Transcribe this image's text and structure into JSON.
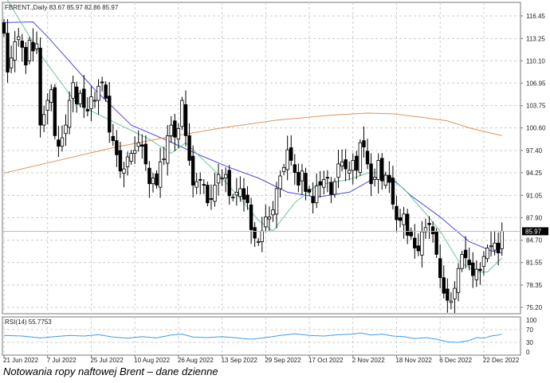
{
  "chart_data": {
    "type": "candlestick",
    "title": "FBRENT.,Daily",
    "ohlc_header": "83.67 85.97 82.86 85.97",
    "caption": "Notowania ropy naftowej Brent – dane dzienne",
    "current_price": "85.97",
    "ylim": [
      74.0,
      117.9
    ],
    "y_ticks": [
      "116.45",
      "113.25",
      "110.10",
      "106.95",
      "103.75",
      "100.60",
      "97.40",
      "94.25",
      "91.05",
      "87.90",
      "84.70",
      "81.55",
      "78.35",
      "75.20"
    ],
    "x_ticks": [
      {
        "label": "21 Jun 2022",
        "index": 0
      },
      {
        "label": "7 Jul 2022",
        "index": 12
      },
      {
        "label": "25 Jul 2022",
        "index": 24
      },
      {
        "label": "10 Aug 2022",
        "index": 36
      },
      {
        "label": "26 Aug 2022",
        "index": 48
      },
      {
        "label": "13 Sep 2022",
        "index": 60
      },
      {
        "label": "29 Sep 2022",
        "index": 72
      },
      {
        "label": "17 Oct 2022",
        "index": 84
      },
      {
        "label": "2 Nov 2022",
        "index": 96
      },
      {
        "label": "18 Nov 2022",
        "index": 108
      },
      {
        "label": "6 Dec 2022",
        "index": 120
      },
      {
        "label": "22 Dec 2022",
        "index": 132
      }
    ],
    "closes": [
      114.0,
      108.5,
      110.5,
      112.8,
      113.5,
      112.0,
      109.5,
      113.0,
      111.5,
      112.5,
      101.0,
      102.5,
      104.5,
      106.0,
      99.5,
      98.0,
      99.2,
      101.0,
      104.5,
      107.0,
      104.0,
      105.5,
      103.5,
      103.0,
      105.0,
      104.5,
      106.5,
      107.0,
      104.8,
      100.0,
      98.8,
      96.8,
      94.5,
      94.8,
      96.5,
      97.0,
      97.4,
      98.5,
      98.0,
      95.5,
      92.7,
      93.5,
      92.5,
      95.8,
      96.2,
      99.5,
      101.0,
      99.3,
      100.5,
      104.5,
      99.5,
      96.0,
      92.5,
      93.0,
      93.2,
      92.5,
      90.0,
      90.5,
      92.5,
      94.0,
      93.5,
      94.0,
      91.0,
      90.8,
      91.5,
      92.0,
      90.5,
      90.0,
      86.2,
      85.0,
      84.5,
      86.0,
      88.0,
      88.0,
      89.0,
      92.0,
      93.8,
      95.0,
      97.5,
      96.0,
      94.3,
      92.5,
      94.5,
      91.6,
      91.5,
      90.0,
      92.4,
      92.5,
      93.3,
      93.5,
      91.2,
      93.0,
      95.5,
      95.8,
      94.8,
      94.6,
      96.0,
      94.6,
      98.5,
      97.9,
      95.5,
      92.7,
      93.6,
      96.0,
      93.1,
      93.9,
      92.9,
      89.8,
      87.6,
      87.5,
      88.4,
      85.4,
      85.3,
      83.6,
      83.2,
      85.9,
      86.5,
      86.9,
      85.6,
      82.7,
      79.4,
      77.2,
      76.2,
      76.1,
      77.9,
      80.7,
      82.7,
      82.2,
      81.2,
      79.7,
      80.6,
      80.4,
      82.4,
      83.6,
      83.9,
      84.3,
      82.9,
      85.97
    ],
    "series": [
      {
        "name": "MA slow (blue)",
        "color": "#4b4bdc",
        "points": [
          [
            0,
            115.5
          ],
          [
            8,
            115.6
          ],
          [
            12,
            113.5
          ],
          [
            25,
            106
          ],
          [
            35,
            101
          ],
          [
            45,
            98.8
          ],
          [
            55,
            96.5
          ],
          [
            62,
            95
          ],
          [
            70,
            93.5
          ],
          [
            78,
            91.5
          ],
          [
            86,
            90.8
          ],
          [
            95,
            91.5
          ],
          [
            102,
            93.5
          ],
          [
            106,
            93.8
          ],
          [
            112,
            91
          ],
          [
            120,
            88
          ],
          [
            128,
            84.5
          ],
          [
            134,
            83.2
          ],
          [
            137,
            82.9
          ]
        ]
      },
      {
        "name": "MA fast (green)",
        "color": "#6cc694",
        "points": [
          [
            0,
            119.5
          ],
          [
            10,
            111
          ],
          [
            20,
            104
          ],
          [
            30,
            101.5
          ],
          [
            40,
            99
          ],
          [
            46,
            97
          ],
          [
            50,
            98.5
          ],
          [
            55,
            96
          ],
          [
            60,
            93.5
          ],
          [
            66,
            90
          ],
          [
            70,
            87.5
          ],
          [
            74,
            86
          ],
          [
            80,
            90
          ],
          [
            86,
            92.5
          ],
          [
            95,
            93.3
          ],
          [
            100,
            94.2
          ],
          [
            104,
            94.3
          ],
          [
            110,
            92
          ],
          [
            116,
            88.5
          ],
          [
            120,
            86
          ],
          [
            125,
            81.8
          ],
          [
            130,
            80.2
          ],
          [
            133,
            80.2
          ],
          [
            137,
            82.2
          ]
        ]
      },
      {
        "name": "MA 200 (orange)",
        "color": "#e0935a",
        "points": [
          [
            0,
            94.2
          ],
          [
            15,
            96
          ],
          [
            30,
            97.8
          ],
          [
            45,
            99.3
          ],
          [
            60,
            100.6
          ],
          [
            75,
            101.7
          ],
          [
            90,
            102.4
          ],
          [
            100,
            102.7
          ],
          [
            107,
            102.6
          ],
          [
            115,
            102.1
          ],
          [
            122,
            101.6
          ],
          [
            128,
            100.6
          ],
          [
            137,
            99.5
          ]
        ]
      }
    ],
    "rsi": {
      "label": "RSI(14) 55.7753",
      "y_ticks": [
        "100",
        "70",
        "30",
        "0"
      ],
      "ylim": [
        0,
        100
      ],
      "points": [
        [
          0,
          52
        ],
        [
          5,
          50
        ],
        [
          10,
          44
        ],
        [
          14,
          48
        ],
        [
          18,
          52
        ],
        [
          22,
          50
        ],
        [
          26,
          54
        ],
        [
          30,
          47
        ],
        [
          34,
          43
        ],
        [
          38,
          48
        ],
        [
          42,
          44
        ],
        [
          46,
          53
        ],
        [
          49,
          56
        ],
        [
          52,
          47
        ],
        [
          56,
          45
        ],
        [
          60,
          48
        ],
        [
          64,
          44
        ],
        [
          68,
          40
        ],
        [
          72,
          45
        ],
        [
          76,
          52
        ],
        [
          80,
          57
        ],
        [
          84,
          52
        ],
        [
          88,
          50
        ],
        [
          92,
          54
        ],
        [
          96,
          56
        ],
        [
          98,
          60
        ],
        [
          101,
          53
        ],
        [
          104,
          56
        ],
        [
          107,
          50
        ],
        [
          110,
          48
        ],
        [
          113,
          42
        ],
        [
          116,
          45
        ],
        [
          119,
          40
        ],
        [
          122,
          32
        ],
        [
          125,
          30
        ],
        [
          128,
          36
        ],
        [
          130,
          45
        ],
        [
          132,
          43
        ],
        [
          134,
          50
        ],
        [
          136,
          53
        ],
        [
          137,
          55.8
        ]
      ]
    }
  }
}
